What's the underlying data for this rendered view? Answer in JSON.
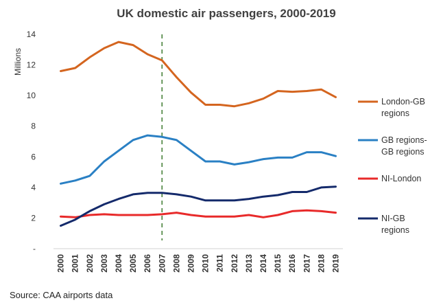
{
  "source_note": "Source:  CAA airports data",
  "chart_data": {
    "type": "line",
    "title": "UK domestic air passengers, 2000-2019",
    "ylabel": "Millions",
    "xlabel": "",
    "ylim": [
      0,
      14
    ],
    "yticks": [
      "-",
      "2",
      "4",
      "6",
      "8",
      "10",
      "12",
      "14"
    ],
    "x": [
      "2000",
      "2001",
      "2002",
      "2003",
      "2004",
      "2005",
      "2006",
      "2007",
      "2008",
      "2009",
      "2010",
      "2011",
      "2012",
      "2013",
      "2014",
      "2015",
      "2016",
      "2017",
      "2018",
      "2019"
    ],
    "reference_line_x": "2007",
    "grid": false,
    "legend_position": "right",
    "series": [
      {
        "name": "London-GB regions",
        "legend_lines": [
          "London-GB",
          "regions"
        ],
        "color": "#d4651f",
        "values": [
          11.6,
          11.8,
          12.5,
          13.1,
          13.5,
          13.3,
          12.7,
          12.3,
          11.2,
          10.2,
          9.4,
          9.4,
          9.3,
          9.5,
          9.8,
          10.3,
          10.25,
          10.3,
          10.4,
          9.9
        ]
      },
      {
        "name": "GB regions-GB regions",
        "legend_lines": [
          "GB regions-",
          "GB regions"
        ],
        "color": "#2a80c4",
        "values": [
          4.25,
          4.45,
          4.75,
          5.7,
          6.4,
          7.1,
          7.4,
          7.3,
          7.1,
          6.4,
          5.7,
          5.7,
          5.5,
          5.65,
          5.85,
          5.95,
          5.95,
          6.3,
          6.3,
          6.05
        ]
      },
      {
        "name": "NI-London",
        "legend_lines": [
          "NI-London"
        ],
        "color": "#e82a2a",
        "values": [
          2.1,
          2.05,
          2.2,
          2.25,
          2.2,
          2.2,
          2.2,
          2.25,
          2.35,
          2.2,
          2.1,
          2.1,
          2.1,
          2.2,
          2.05,
          2.2,
          2.45,
          2.5,
          2.45,
          2.35
        ]
      },
      {
        "name": "NI-GB regions",
        "legend_lines": [
          "NI-GB",
          "regions"
        ],
        "color": "#142a6b",
        "values": [
          1.5,
          1.9,
          2.45,
          2.9,
          3.25,
          3.55,
          3.65,
          3.65,
          3.55,
          3.4,
          3.15,
          3.15,
          3.15,
          3.25,
          3.4,
          3.5,
          3.7,
          3.7,
          4.0,
          4.05
        ]
      }
    ]
  }
}
